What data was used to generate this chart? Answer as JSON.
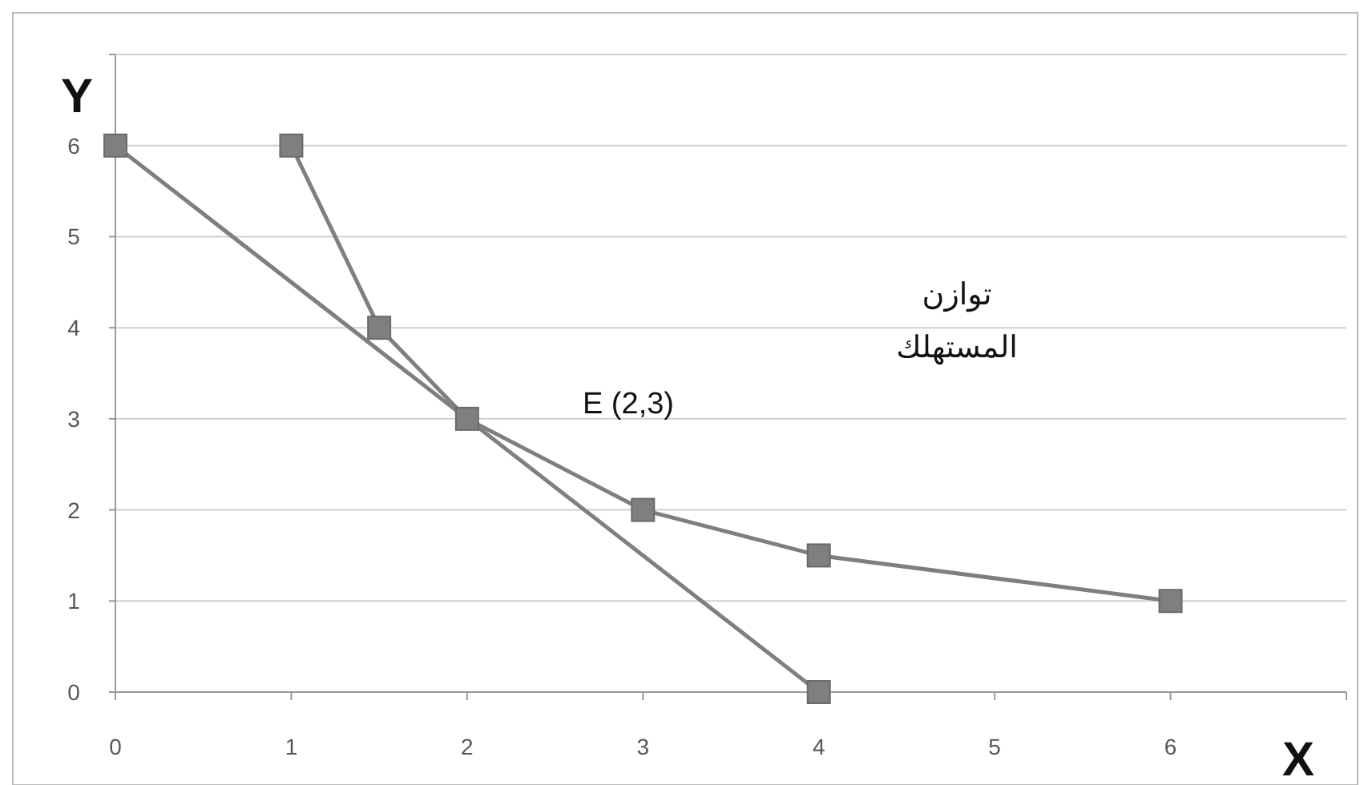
{
  "chart_data": {
    "type": "line",
    "xlabel": "X",
    "ylabel": "Y",
    "xlim": [
      0,
      7
    ],
    "ylim": [
      0,
      7
    ],
    "xticks": [
      0,
      1,
      2,
      3,
      4,
      5,
      6,
      {
        "value": 7,
        "label": null
      }
    ],
    "yticks": [
      0,
      1,
      2,
      3,
      4,
      5,
      6,
      {
        "value": 7,
        "label": null
      }
    ],
    "grid": "y",
    "marker": "square",
    "line_style": "solid",
    "series": [
      {
        "color": "#7f7f7f",
        "x": [
          1,
          1.5,
          2,
          3,
          4,
          6
        ],
        "values": [
          6,
          4,
          3,
          2,
          1.5,
          1
        ]
      },
      {
        "color": "#7f7f7f",
        "x": [
          0,
          4
        ],
        "values": [
          6,
          0
        ]
      }
    ],
    "annotations": [
      "E (2,3)",
      "توازن\nالمستهلك"
    ]
  }
}
